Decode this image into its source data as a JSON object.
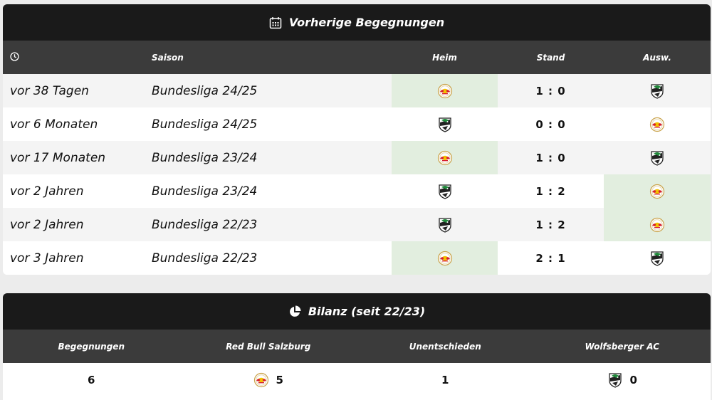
{
  "matches_title": "Vorherige Begegnungen",
  "headers": {
    "saison": "Saison",
    "heim": "Heim",
    "stand": "Stand",
    "ausw": "Ausw."
  },
  "matches": [
    {
      "time": "vor 38 Tagen",
      "season": "Bundesliga 24/25",
      "home": "red-bull-salzburg",
      "score": "1 : 0",
      "away": "wolfsberger-ac",
      "winner": "home"
    },
    {
      "time": "vor 6 Monaten",
      "season": "Bundesliga 24/25",
      "home": "wolfsberger-ac",
      "score": "0 : 0",
      "away": "red-bull-salzburg",
      "winner": "none"
    },
    {
      "time": "vor 17 Monaten",
      "season": "Bundesliga 23/24",
      "home": "red-bull-salzburg",
      "score": "1 : 0",
      "away": "wolfsberger-ac",
      "winner": "home"
    },
    {
      "time": "vor 2 Jahren",
      "season": "Bundesliga 23/24",
      "home": "wolfsberger-ac",
      "score": "1 : 2",
      "away": "red-bull-salzburg",
      "winner": "away"
    },
    {
      "time": "vor 2 Jahren",
      "season": "Bundesliga 22/23",
      "home": "wolfsberger-ac",
      "score": "1 : 2",
      "away": "red-bull-salzburg",
      "winner": "away"
    },
    {
      "time": "vor 3 Jahren",
      "season": "Bundesliga 22/23",
      "home": "red-bull-salzburg",
      "score": "2 : 1",
      "away": "wolfsberger-ac",
      "winner": "home"
    }
  ],
  "bilanz_title": "Bilanz (seit 22/23)",
  "bilanz_headers": {
    "games": "Begegnungen",
    "team1": "Red Bull Salzburg",
    "draws": "Unentschieden",
    "team2": "Wolfsberger AC"
  },
  "bilanz_values": {
    "games": "6",
    "team1": "5",
    "draws": "1",
    "team2": "0"
  },
  "colors": {
    "header_dark": "#1a1a1a",
    "header_mid": "#3b3b3b",
    "win_highlight": "#e2eedf",
    "rbs_red": "#d6202e",
    "wac_black": "#222222"
  }
}
